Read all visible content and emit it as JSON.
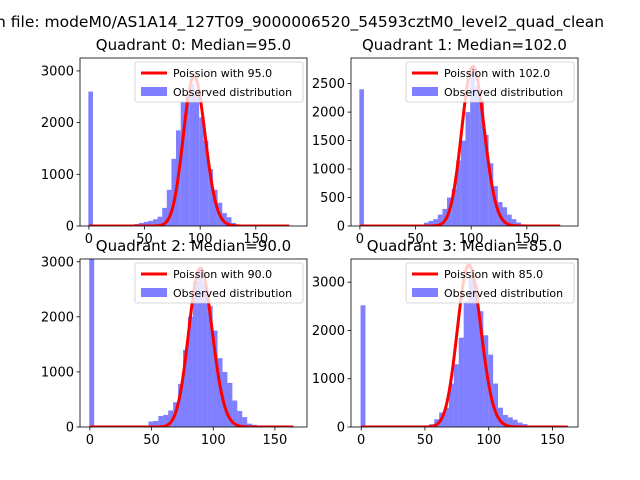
{
  "suptitle": "n file: modeM0/AS1A14_127T09_9000006520_54593cztM0_level2_quad_clean",
  "colors": {
    "poisson": "#ff0000",
    "hist": "#0000ff",
    "axis": "#000000",
    "background": "#ffffff"
  },
  "chart_data": [
    {
      "type": "bar",
      "title": "Quadrant 0: Median=95.0",
      "legend": {
        "placement": "top-right",
        "entries": [
          "Poission with 95.0",
          "Observed distribution"
        ]
      },
      "xlim": [
        -8,
        196
      ],
      "ylim": [
        0,
        3250
      ],
      "xticks": [
        0,
        50,
        100,
        150
      ],
      "yticks": [
        0,
        1000,
        2000,
        3000
      ],
      "bin_width": 4.15,
      "bin_starts": [
        -0.5,
        3.6,
        7.8,
        11.9,
        16.1,
        20.2,
        24.4,
        28.5,
        32.7,
        36.8,
        41.0,
        45.1,
        49.3,
        53.4,
        57.6,
        61.7,
        65.9,
        70.0,
        74.2,
        78.3,
        82.5,
        86.6,
        90.8,
        94.9,
        99.1,
        103.2,
        107.4,
        111.5,
        115.7,
        119.8,
        124.0,
        128.1,
        132.3,
        136.4,
        140.6,
        144.7,
        148.9,
        153.0,
        157.2,
        161.3,
        165.5,
        169.6,
        173.8
      ],
      "observed": [
        2600,
        0,
        0,
        0,
        0,
        0,
        0,
        0,
        0,
        20,
        40,
        60,
        80,
        100,
        130,
        180,
        350,
        700,
        1300,
        1850,
        2400,
        2500,
        2750,
        2550,
        2100,
        1650,
        1100,
        700,
        450,
        250,
        170,
        60,
        30,
        15,
        8,
        3,
        2,
        1,
        0,
        0,
        0,
        0,
        0
      ],
      "poisson": {
        "lambda": 95.0,
        "peak": 2900,
        "x_range": [
          0,
          180
        ]
      }
    },
    {
      "type": "bar",
      "title": "Quadrant 1: Median=102.0",
      "legend": {
        "placement": "top-right",
        "entries": [
          "Poission with 102.0",
          "Observed distribution"
        ]
      },
      "xlim": [
        -8,
        196
      ],
      "ylim": [
        0,
        2950
      ],
      "xticks": [
        0,
        50,
        100,
        150
      ],
      "yticks": [
        0,
        500,
        1000,
        1500,
        2000,
        2500
      ],
      "bin_width": 4.15,
      "bin_starts": [
        -0.5,
        3.6,
        7.8,
        11.9,
        16.1,
        20.2,
        24.4,
        28.5,
        32.7,
        36.8,
        41.0,
        45.1,
        49.3,
        53.4,
        57.6,
        61.7,
        65.9,
        70.0,
        74.2,
        78.3,
        82.5,
        86.6,
        90.8,
        94.9,
        99.1,
        103.2,
        107.4,
        111.5,
        115.7,
        119.8,
        124.0,
        128.1,
        132.3,
        136.4,
        140.6,
        144.7,
        148.9,
        153.0,
        157.2,
        161.3,
        165.5,
        169.6,
        173.8
      ],
      "observed": [
        2400,
        0,
        0,
        0,
        0,
        0,
        0,
        0,
        0,
        0,
        0,
        0,
        0,
        0,
        60,
        90,
        120,
        200,
        300,
        500,
        650,
        1150,
        1500,
        2000,
        2700,
        2450,
        2200,
        1600,
        1100,
        700,
        420,
        330,
        200,
        120,
        60,
        30,
        12,
        5,
        2,
        1,
        0,
        0,
        0
      ],
      "poisson": {
        "lambda": 102.0,
        "peak": 2800,
        "x_range": [
          0,
          180
        ]
      }
    },
    {
      "type": "bar",
      "title": "Quadrant 2: Median=90.0",
      "legend": {
        "placement": "top-right",
        "entries": [
          "Poission with 90.0",
          "Observed distribution"
        ]
      },
      "xlim": [
        -8,
        176
      ],
      "ylim": [
        0,
        3050
      ],
      "xticks": [
        0,
        50,
        100,
        150
      ],
      "yticks": [
        0,
        1000,
        2000,
        3000
      ],
      "bin_width": 4.0,
      "bin_starts": [
        -0.5,
        3.5,
        7.5,
        11.5,
        15.5,
        19.5,
        23.5,
        27.5,
        31.5,
        35.5,
        39.5,
        43.5,
        47.5,
        51.5,
        55.5,
        59.5,
        63.5,
        67.5,
        71.5,
        75.5,
        79.5,
        83.5,
        87.5,
        91.5,
        95.5,
        99.5,
        103.5,
        107.5,
        111.5,
        115.5,
        119.5,
        123.5,
        127.5,
        131.5,
        135.5,
        139.5,
        143.5,
        147.5,
        151.5,
        155.5,
        159.5,
        163.5
      ],
      "observed": [
        3050,
        0,
        0,
        0,
        0,
        0,
        0,
        0,
        0,
        0,
        0,
        20,
        100,
        110,
        200,
        220,
        300,
        450,
        780,
        1400,
        2000,
        2650,
        2900,
        2600,
        2200,
        1750,
        1250,
        1000,
        800,
        480,
        290,
        180,
        60,
        40,
        20,
        8,
        3,
        1,
        0,
        0,
        0,
        0
      ],
      "poisson": {
        "lambda": 90.0,
        "peak": 2880,
        "x_range": [
          0,
          165
        ]
      }
    },
    {
      "type": "bar",
      "title": "Quadrant 3: Median=85.0",
      "legend": {
        "placement": "top-right",
        "entries": [
          "Poission with 85.0",
          "Observed distribution"
        ]
      },
      "xlim": [
        -8,
        170
      ],
      "ylim": [
        0,
        3480
      ],
      "xticks": [
        0,
        50,
        100,
        150
      ],
      "yticks": [
        0,
        1000,
        2000,
        3000
      ],
      "bin_width": 3.85,
      "bin_starts": [
        -0.5,
        3.35,
        7.2,
        11.05,
        14.9,
        18.75,
        22.6,
        26.45,
        30.3,
        34.15,
        38.0,
        41.85,
        45.7,
        49.55,
        53.4,
        57.25,
        61.1,
        64.95,
        68.8,
        72.65,
        76.5,
        80.35,
        84.2,
        88.05,
        91.9,
        95.75,
        99.6,
        103.45,
        107.3,
        111.15,
        115.0,
        118.85,
        122.7,
        126.55,
        130.4,
        134.25,
        138.1,
        141.95,
        145.8,
        149.65,
        153.5,
        157.35
      ],
      "observed": [
        2520,
        0,
        0,
        0,
        0,
        0,
        0,
        0,
        0,
        0,
        0,
        0,
        0,
        0,
        60,
        160,
        300,
        400,
        900,
        1300,
        1850,
        2600,
        3150,
        2950,
        2400,
        1900,
        1500,
        900,
        400,
        250,
        200,
        150,
        90,
        60,
        30,
        15,
        6,
        2,
        1,
        0,
        0,
        0
      ],
      "poisson": {
        "lambda": 85.0,
        "peak": 3350,
        "x_range": [
          0,
          162
        ]
      }
    }
  ]
}
